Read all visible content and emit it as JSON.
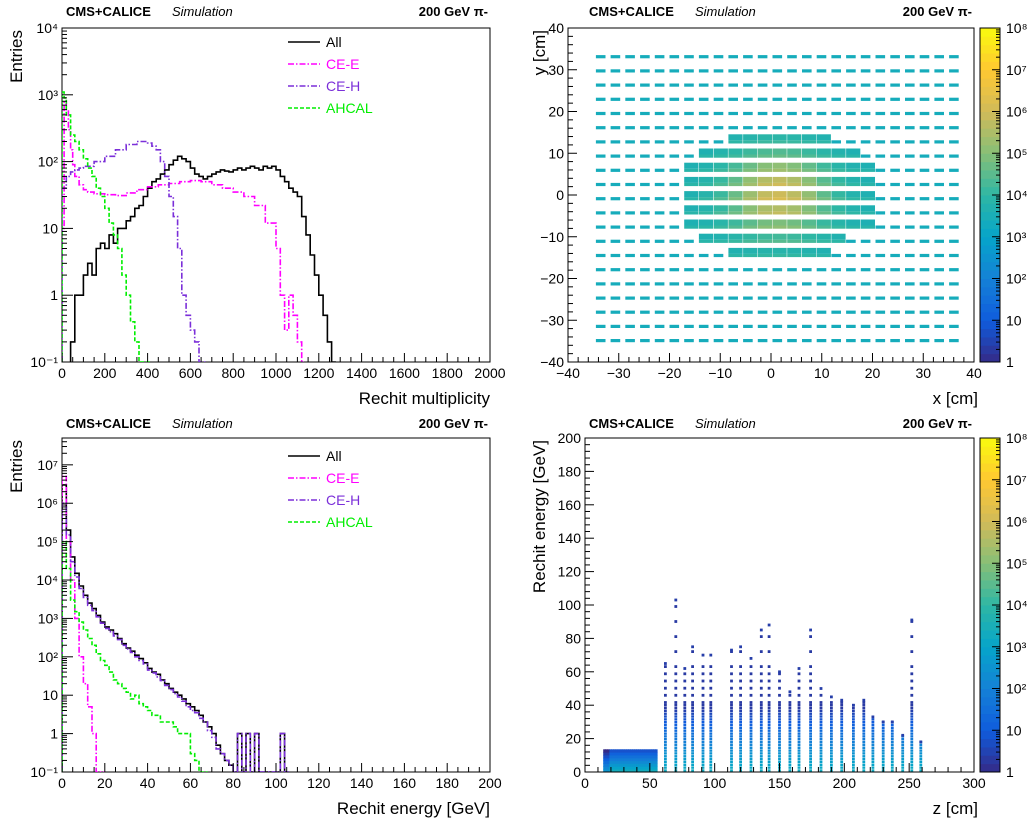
{
  "figure": {
    "header_experiment": "CMS+CALICE",
    "header_mode": "Simulation",
    "header_beam": "200 GeV π-"
  },
  "chart_data": [
    {
      "id": "multiplicity",
      "type": "line",
      "xlabel": "Rechit multiplicity",
      "ylabel": "Entries",
      "xlim": [
        0,
        2000
      ],
      "ylim": [
        0.1,
        10000
      ],
      "yscale": "log",
      "grid": false,
      "legend_position": "top-right",
      "xticks": [
        "0",
        "200",
        "400",
        "600",
        "800",
        "1000",
        "1200",
        "1400",
        "1600",
        "1800",
        "2000"
      ],
      "yticks": [
        "10⁻¹",
        "1",
        "10",
        "10²",
        "10³",
        "10⁴"
      ],
      "series": [
        {
          "name": "All",
          "color": "#000000",
          "dash": "solid",
          "x": [
            40,
            60,
            80,
            100,
            120,
            140,
            160,
            180,
            200,
            220,
            240,
            260,
            280,
            300,
            320,
            340,
            360,
            380,
            400,
            420,
            440,
            460,
            480,
            500,
            520,
            540,
            560,
            580,
            600,
            620,
            640,
            660,
            680,
            700,
            720,
            740,
            760,
            780,
            800,
            820,
            840,
            860,
            880,
            900,
            920,
            940,
            960,
            980,
            1000,
            1020,
            1040,
            1060,
            1080,
            1100,
            1120,
            1140,
            1160,
            1180,
            1200,
            1220,
            1240,
            1260
          ],
          "y": [
            0.2,
            1,
            1,
            2,
            3,
            2,
            5,
            6,
            5,
            8,
            6,
            10,
            10,
            13,
            15,
            20,
            22,
            30,
            40,
            50,
            55,
            65,
            75,
            90,
            105,
            120,
            110,
            100,
            80,
            65,
            60,
            55,
            60,
            65,
            70,
            75,
            72,
            70,
            75,
            80,
            75,
            80,
            85,
            80,
            75,
            85,
            80,
            85,
            75,
            60,
            50,
            40,
            35,
            30,
            15,
            8,
            4,
            2,
            1,
            0.5,
            0.2,
            0.1
          ]
        },
        {
          "name": "CE-E",
          "color": "#ff00ff",
          "dash": "dashdot",
          "x": [
            0,
            10,
            20,
            30,
            40,
            50,
            60,
            80,
            100,
            120,
            150,
            200,
            250,
            300,
            350,
            400,
            450,
            500,
            550,
            600,
            650,
            700,
            750,
            800,
            850,
            900,
            950,
            1000,
            1020,
            1040,
            1060,
            1080,
            1100,
            1120
          ],
          "y": [
            10,
            800,
            600,
            300,
            150,
            90,
            60,
            45,
            38,
            35,
            33,
            32,
            31,
            34,
            38,
            42,
            45,
            47,
            50,
            52,
            50,
            45,
            40,
            35,
            30,
            22,
            12,
            5,
            1,
            0.3,
            1,
            0.5,
            0.2,
            0.1
          ]
        },
        {
          "name": "CE-H",
          "color": "#7b2fd9",
          "dash": "dashdot",
          "x": [
            0,
            20,
            40,
            60,
            80,
            100,
            150,
            200,
            250,
            300,
            350,
            400,
            420,
            440,
            460,
            480,
            500,
            520,
            540,
            560,
            580,
            600,
            620,
            640,
            650
          ],
          "y": [
            40,
            60,
            70,
            75,
            80,
            85,
            100,
            120,
            150,
            180,
            200,
            190,
            170,
            150,
            100,
            60,
            30,
            15,
            5,
            1,
            0.5,
            0.3,
            0.2,
            0.1,
            0.1
          ]
        },
        {
          "name": "AHCAL",
          "color": "#00ee00",
          "dash": "dashed",
          "x": [
            0,
            10,
            20,
            40,
            60,
            80,
            100,
            120,
            140,
            160,
            180,
            200,
            220,
            240,
            260,
            280,
            300,
            320,
            340,
            360,
            380,
            400
          ],
          "y": [
            1100,
            900,
            500,
            250,
            200,
            150,
            110,
            80,
            60,
            40,
            30,
            20,
            12,
            8,
            5,
            2,
            1,
            0.4,
            0.2,
            0.1,
            0.1,
            0.1
          ]
        }
      ]
    },
    {
      "id": "xy-map",
      "type": "heatmap",
      "xlabel": "x [cm]",
      "ylabel": "y [cm]",
      "xlim": [
        -40,
        40
      ],
      "ylim": [
        -40,
        40
      ],
      "xticks": [
        "−40",
        "−30",
        "−20",
        "−10",
        "0",
        "10",
        "20",
        "30",
        "40"
      ],
      "yticks": [
        "−40",
        "−30",
        "−20",
        "−10",
        "0",
        "10",
        "20",
        "30",
        "40"
      ],
      "colorbar_ticks": [
        "1",
        "10",
        "10²",
        "10³",
        "10⁴",
        "10⁵",
        "10⁶",
        "10⁷",
        "10⁸"
      ],
      "colorbar_range": [
        1,
        100000000
      ],
      "colorscale": [
        "#352a87",
        "#0f5cdd",
        "#1481d6",
        "#06a4ca",
        "#2eb7a4",
        "#87bf77",
        "#d1bb59",
        "#fec832",
        "#f9fb0e"
      ],
      "cell_pattern": "regular grid of rectangular cells, central hexagonal-like region of elevated counts",
      "description_values": {
        "center_peak": [
          0,
          0
        ],
        "outer_level": 2000,
        "peak_level": 2000000
      }
    },
    {
      "id": "energy",
      "type": "line",
      "xlabel": "Rechit energy [GeV]",
      "ylabel": "Entries",
      "xlim": [
        0,
        200
      ],
      "ylim": [
        0.1,
        50000000
      ],
      "yscale": "log",
      "grid": false,
      "legend_position": "top-right",
      "xticks": [
        "0",
        "20",
        "40",
        "60",
        "80",
        "100",
        "120",
        "140",
        "160",
        "180",
        "200"
      ],
      "yticks": [
        "10⁻¹",
        "1",
        "10",
        "10²",
        "10³",
        "10⁴",
        "10⁵",
        "10⁶",
        "10⁷"
      ],
      "series": [
        {
          "name": "All",
          "color": "#000000",
          "dash": "solid",
          "x": [
            0,
            2,
            4,
            6,
            8,
            10,
            12,
            14,
            16,
            18,
            20,
            22,
            24,
            26,
            28,
            30,
            32,
            34,
            36,
            38,
            40,
            42,
            44,
            46,
            48,
            50,
            52,
            54,
            56,
            58,
            60,
            62,
            64,
            66,
            68,
            70,
            72,
            74,
            76,
            78,
            80,
            82,
            84,
            86,
            88,
            90,
            92,
            94,
            96,
            98,
            100,
            102,
            104
          ],
          "y": [
            3000000,
            200000,
            40000,
            15000,
            7000,
            4000,
            2500,
            1800,
            1200,
            800,
            600,
            500,
            400,
            300,
            220,
            170,
            140,
            110,
            90,
            70,
            50,
            40,
            35,
            25,
            20,
            15,
            12,
            10,
            8,
            6,
            5,
            4,
            3,
            2,
            1.5,
            1,
            0.5,
            0.3,
            0.2,
            0.15,
            0.1,
            1,
            0.1,
            1,
            0.1,
            1,
            0.1,
            0.1,
            0.1,
            0.1,
            0.1,
            1,
            0.1
          ]
        },
        {
          "name": "CE-E",
          "color": "#ff00ff",
          "dash": "dashdot",
          "x": [
            0,
            2,
            4,
            6,
            8,
            10,
            12,
            14,
            16,
            18
          ],
          "y": [
            5000000,
            100000,
            10000,
            1000,
            100,
            20,
            5,
            1,
            0.1,
            0.1
          ]
        },
        {
          "name": "CE-H",
          "color": "#7b2fd9",
          "dash": "dashdot",
          "x": [
            0,
            2,
            4,
            6,
            8,
            10,
            12,
            14,
            16,
            18,
            20,
            22,
            24,
            26,
            28,
            30,
            32,
            34,
            36,
            38,
            40,
            42,
            44,
            46,
            48,
            50,
            52,
            54,
            56,
            58,
            60,
            62,
            64,
            66,
            68,
            70,
            72,
            74,
            76,
            78,
            80,
            82,
            84,
            86,
            88,
            90,
            92,
            94,
            96,
            98,
            100,
            102,
            104
          ],
          "y": [
            1000000,
            150000,
            30000,
            12000,
            6000,
            3500,
            2200,
            1600,
            1100,
            750,
            550,
            450,
            350,
            280,
            200,
            160,
            130,
            100,
            80,
            65,
            45,
            38,
            30,
            24,
            18,
            14,
            11,
            9,
            7,
            5,
            4,
            3.5,
            2.5,
            2,
            1.2,
            0.8,
            0.4,
            0.3,
            0.2,
            0.15,
            0.1,
            1,
            0.1,
            1,
            0.1,
            1,
            0.1,
            0.1,
            0.1,
            0.1,
            0.1,
            1,
            0.1
          ]
        },
        {
          "name": "AHCAL",
          "color": "#00ee00",
          "dash": "dashed",
          "x": [
            0,
            2,
            4,
            6,
            8,
            10,
            12,
            14,
            16,
            18,
            20,
            22,
            24,
            26,
            28,
            30,
            32,
            34,
            36,
            38,
            40,
            42,
            44,
            46,
            48,
            50,
            52,
            54,
            56,
            58,
            60,
            62,
            64,
            66
          ],
          "y": [
            100000,
            20000,
            3000,
            1500,
            800,
            500,
            300,
            200,
            120,
            80,
            60,
            40,
            25,
            20,
            15,
            12,
            8,
            10,
            6,
            5,
            4,
            3,
            3,
            2,
            2,
            2,
            1.5,
            1,
            1,
            1,
            0.3,
            0.2,
            0.1,
            0.1
          ]
        }
      ]
    },
    {
      "id": "energy-vs-z",
      "type": "heatmap",
      "xlabel": "z [cm]",
      "ylabel": "Rechit energy [GeV]",
      "xlim": [
        0,
        300
      ],
      "ylim": [
        0,
        200
      ],
      "xticks": [
        "0",
        "50",
        "100",
        "150",
        "200",
        "250",
        "300"
      ],
      "yticks": [
        "0",
        "20",
        "40",
        "60",
        "80",
        "100",
        "120",
        "140",
        "160",
        "180",
        "200"
      ],
      "colorbar_ticks": [
        "1",
        "10",
        "10²",
        "10³",
        "10⁴",
        "10⁵",
        "10⁶",
        "10⁷",
        "10⁸"
      ],
      "colorbar_range": [
        1,
        100000000
      ],
      "colorscale": [
        "#352a87",
        "#0f5cdd",
        "#1481d6",
        "#06a4ca",
        "#2eb7a4",
        "#87bf77",
        "#d1bb59",
        "#fec832",
        "#f9fb0e"
      ],
      "ce_e_region": {
        "z_range": [
          14,
          55
        ],
        "e_max": 13
      },
      "ahcal_layers": [
        {
          "z": 62,
          "e_max": 65
        },
        {
          "z": 70,
          "e_max": 103
        },
        {
          "z": 77,
          "e_max": 62
        },
        {
          "z": 83,
          "e_max": 75
        },
        {
          "z": 91,
          "e_max": 70
        },
        {
          "z": 97,
          "e_max": 70
        },
        {
          "z": 113,
          "e_max": 73
        },
        {
          "z": 120,
          "e_max": 75
        },
        {
          "z": 128,
          "e_max": 68
        },
        {
          "z": 136,
          "e_max": 85
        },
        {
          "z": 142,
          "e_max": 88
        },
        {
          "z": 150,
          "e_max": 60
        },
        {
          "z": 158,
          "e_max": 48
        },
        {
          "z": 165,
          "e_max": 62
        },
        {
          "z": 174,
          "e_max": 85
        },
        {
          "z": 182,
          "e_max": 50
        },
        {
          "z": 190,
          "e_max": 45
        },
        {
          "z": 198,
          "e_max": 43
        },
        {
          "z": 207,
          "e_max": 40
        },
        {
          "z": 215,
          "e_max": 43
        },
        {
          "z": 222,
          "e_max": 33
        },
        {
          "z": 230,
          "e_max": 30
        },
        {
          "z": 237,
          "e_max": 30
        },
        {
          "z": 245,
          "e_max": 22
        },
        {
          "z": 252,
          "e_max": 91
        },
        {
          "z": 259,
          "e_max": 18
        }
      ]
    }
  ]
}
